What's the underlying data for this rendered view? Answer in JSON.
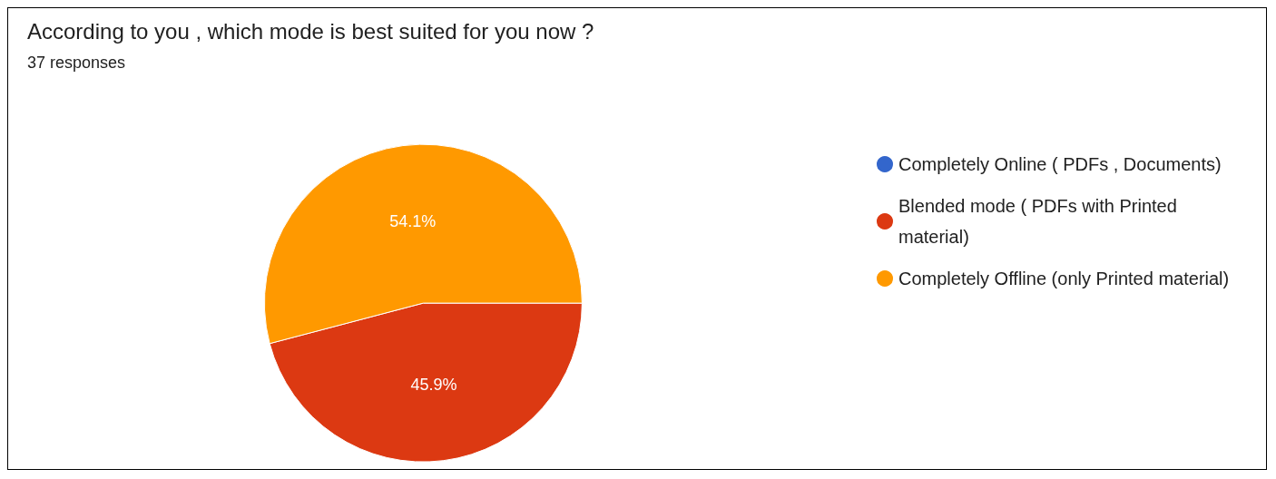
{
  "chart_data": {
    "type": "pie",
    "title": "According to you , which mode is best suited for you now ?",
    "subtitle": "37 responses",
    "categories": [
      "Completely Online ( PDFs , Documents)",
      "Blended mode ( PDFs with Printed material)",
      "Completely Offline (only Printed material)"
    ],
    "values": [
      0,
      45.9,
      54.1
    ],
    "colors": [
      "#3366cc",
      "#dc3912",
      "#ff9900"
    ],
    "value_labels": [
      null,
      "45.9%",
      "54.1%"
    ],
    "legend": "right"
  }
}
